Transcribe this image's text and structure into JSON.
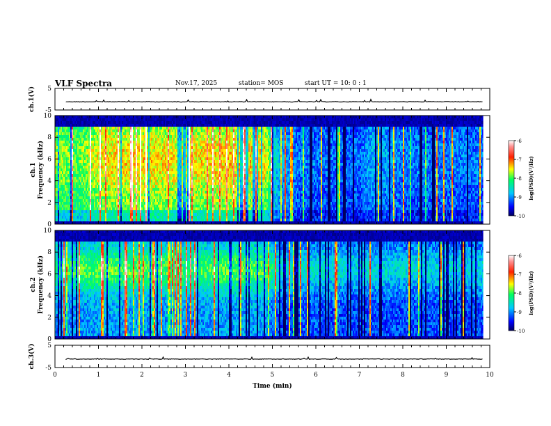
{
  "header": {
    "title": "VLF Spectra",
    "date": "Nov.17, 2025",
    "station": "station= MOS",
    "start": "start  UT =   10: 0  : 1"
  },
  "colors": {
    "waveform": "#000000",
    "axis": "#000000",
    "background": "#ffffff"
  },
  "chart_data": [
    {
      "id": "ch1-waveform",
      "type": "line",
      "ylabel": "ch.1(V)",
      "ylim": [
        -5,
        5
      ],
      "yticks": [
        "5",
        "-5"
      ],
      "xlim": [
        0,
        10
      ],
      "baseline": -1.2,
      "description_series": "near-flat waveform with sparse spikes"
    },
    {
      "id": "ch1-spectrogram",
      "type": "heatmap",
      "ylabel_top": "ch.1",
      "ylabel": "Frequency (kHz)",
      "ylim": [
        0,
        10
      ],
      "yticks": [
        "0",
        "2",
        "4",
        "6",
        "8",
        "10"
      ],
      "xlim": [
        0,
        10
      ],
      "data_end_min": 9.85,
      "intensity_profile_time_min": [
        0,
        0.5,
        1.0,
        2.0,
        3.0,
        4.0,
        4.8,
        5.1,
        5.5,
        6.5,
        7.0,
        7.3,
        8.0,
        9.0,
        9.85
      ],
      "intensity_profile_level": [
        0.55,
        0.5,
        0.6,
        0.62,
        0.6,
        0.63,
        0.62,
        0.3,
        0.22,
        0.2,
        0.2,
        0.28,
        0.22,
        0.22,
        0.22
      ],
      "band_khz": [
        0.4,
        9.0
      ],
      "colorbar": {
        "label": "log(PSD)(V²/Hz)",
        "range": [
          -10,
          -6
        ],
        "ticks": [
          "-6",
          "-7",
          "-8",
          "-9",
          "-10"
        ]
      }
    },
    {
      "id": "ch2-spectrogram",
      "type": "heatmap",
      "ylabel_top": "ch.2",
      "ylabel": "Frequency (kHz)",
      "ylim": [
        0,
        10
      ],
      "yticks": [
        "0",
        "2",
        "4",
        "6",
        "8",
        "10"
      ],
      "xlim": [
        0,
        10
      ],
      "data_end_min": 9.85,
      "intensity_profile_time_min": [
        0,
        1.0,
        2.0,
        3.0,
        4.0,
        4.8,
        5.2,
        6.0,
        7.0,
        8.0,
        9.0,
        9.85
      ],
      "intensity_profile_level": [
        0.4,
        0.45,
        0.45,
        0.42,
        0.45,
        0.45,
        0.3,
        0.32,
        0.3,
        0.3,
        0.3,
        0.3
      ],
      "band_khz": [
        0.4,
        9.2
      ],
      "colorbar": {
        "label": "log(PSD)(V²/Hz)",
        "range": [
          -10,
          -6
        ],
        "ticks": [
          "-6",
          "-7",
          "-8",
          "-9",
          "-10"
        ]
      }
    },
    {
      "id": "ch3-waveform",
      "type": "line",
      "ylabel": "ch.3(V)",
      "ylim": [
        -5,
        5
      ],
      "yticks": [
        "5",
        "-5"
      ],
      "xlim": [
        0,
        10
      ],
      "baseline": -1.2,
      "xlabel": "Time (min)",
      "xticks": [
        "0",
        "1",
        "2",
        "3",
        "4",
        "5",
        "6",
        "7",
        "8",
        "9",
        "10"
      ]
    }
  ]
}
